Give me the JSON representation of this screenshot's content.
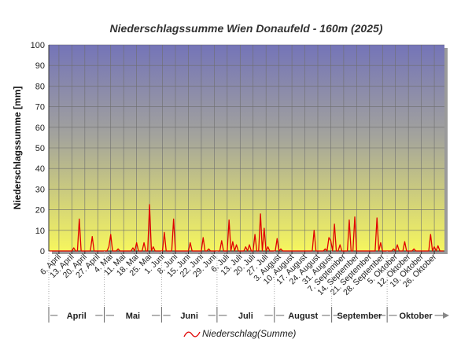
{
  "chart_data": {
    "type": "line",
    "title": "Niederschlagssumme Wien Donaufeld - 160m (2025)",
    "y_label": "Niederschlagssumme [mm]",
    "categories": [
      null,
      null,
      null,
      null,
      null,
      "6. April",
      null,
      null,
      null,
      null,
      null,
      null,
      "13. April",
      null,
      null,
      null,
      null,
      null,
      null,
      "20. April",
      null,
      null,
      null,
      null,
      null,
      null,
      "27. April",
      null,
      null,
      null,
      null,
      null,
      null,
      "4. Mai",
      null,
      null,
      null,
      null,
      null,
      null,
      "11. Mai",
      null,
      null,
      null,
      null,
      null,
      null,
      "18. Mai",
      null,
      null,
      null,
      null,
      null,
      null,
      "25. Mai",
      null,
      null,
      null,
      null,
      null,
      null,
      "1. Juni",
      null,
      null,
      null,
      null,
      null,
      null,
      "8. Juni",
      null,
      null,
      null,
      null,
      null,
      null,
      "15. Juni",
      null,
      null,
      null,
      null,
      null,
      null,
      "22. Juni",
      null,
      null,
      null,
      null,
      null,
      null,
      "29. Juni",
      null,
      null,
      null,
      null,
      null,
      null,
      "6. Juli",
      null,
      null,
      null,
      null,
      null,
      null,
      "13. Juli",
      null,
      null,
      null,
      null,
      null,
      null,
      "20. Juli",
      null,
      null,
      null,
      null,
      null,
      null,
      "27. Juli",
      null,
      null,
      null,
      null,
      null,
      null,
      "3. August",
      null,
      null,
      null,
      null,
      null,
      null,
      "10. August",
      null,
      null,
      null,
      null,
      null,
      null,
      "17. August",
      null,
      null,
      null,
      null,
      null,
      null,
      "24. August",
      null,
      null,
      null,
      null,
      null,
      null,
      "31. August",
      null,
      null,
      null,
      null,
      null,
      null,
      "7. September",
      null,
      null,
      null,
      null,
      null,
      null,
      "14. September",
      null,
      null,
      null,
      null,
      null,
      null,
      "21. September",
      null,
      null,
      null,
      null,
      null,
      null,
      "28. September",
      null,
      null,
      null,
      null,
      null,
      null,
      "5. Oktober",
      null,
      null,
      null,
      null,
      null,
      null,
      "12. Oktober",
      null,
      null,
      null,
      null,
      null,
      null,
      "19. Oktober",
      null,
      null,
      null,
      null,
      null,
      null,
      "26. Oktober",
      null,
      null,
      null,
      null,
      null
    ],
    "months": [
      "April",
      "Mai",
      "Juni",
      "Juli",
      "August",
      "September",
      "Oktober"
    ],
    "series": [
      {
        "name": "Niederschlag(Summe)",
        "color": "#e00000",
        "values": [
          0,
          0,
          0,
          0,
          0,
          0,
          0,
          0,
          0,
          0,
          0,
          0,
          0,
          1.5,
          0,
          0,
          15.5,
          0,
          0,
          0,
          0,
          0,
          0,
          7,
          0,
          0,
          0,
          0,
          0,
          0,
          0,
          0,
          2,
          8,
          0,
          0,
          0,
          1,
          0,
          0,
          0,
          0,
          0,
          0,
          0,
          1.5,
          0,
          4,
          0,
          0,
          0,
          4,
          0,
          0,
          22.5,
          0,
          2,
          0,
          0,
          0,
          0,
          0,
          9,
          0,
          0,
          0,
          0,
          15.5,
          0,
          0,
          0,
          0,
          0,
          0,
          0,
          0,
          4,
          0,
          0,
          0,
          0,
          0,
          0,
          6.5,
          0,
          0,
          1,
          0,
          0,
          0,
          0,
          0,
          0,
          5,
          0,
          0,
          0,
          15,
          0,
          4.5,
          0,
          3,
          0,
          0,
          0,
          0,
          2,
          0,
          3,
          0,
          0,
          8,
          0,
          0,
          18,
          0,
          11,
          0,
          2,
          0,
          0,
          0,
          0,
          6,
          0,
          1,
          0,
          0,
          0,
          0,
          0,
          0,
          0,
          0,
          0,
          0,
          0,
          0,
          0,
          0,
          0,
          0,
          0,
          10,
          0,
          0,
          0,
          0,
          0,
          1,
          0,
          6.5,
          5,
          0,
          13,
          0,
          0,
          3,
          0,
          0,
          0,
          0,
          15,
          0,
          0,
          16.5,
          0,
          0,
          0,
          0,
          0,
          0,
          0,
          0,
          0,
          0,
          0,
          16,
          0,
          4,
          0,
          0,
          0,
          0,
          0,
          0,
          1,
          0,
          3,
          0,
          0,
          0,
          4.5,
          0,
          0,
          0,
          0,
          1,
          0,
          0,
          0,
          0,
          0,
          0,
          0,
          0,
          8,
          0,
          2,
          0,
          2.5,
          0,
          0,
          0
        ]
      }
    ],
    "ylim": [
      0,
      100
    ],
    "yticks": [
      0,
      10,
      20,
      30,
      40,
      50,
      60,
      70,
      80,
      90,
      100
    ],
    "grid": true
  }
}
